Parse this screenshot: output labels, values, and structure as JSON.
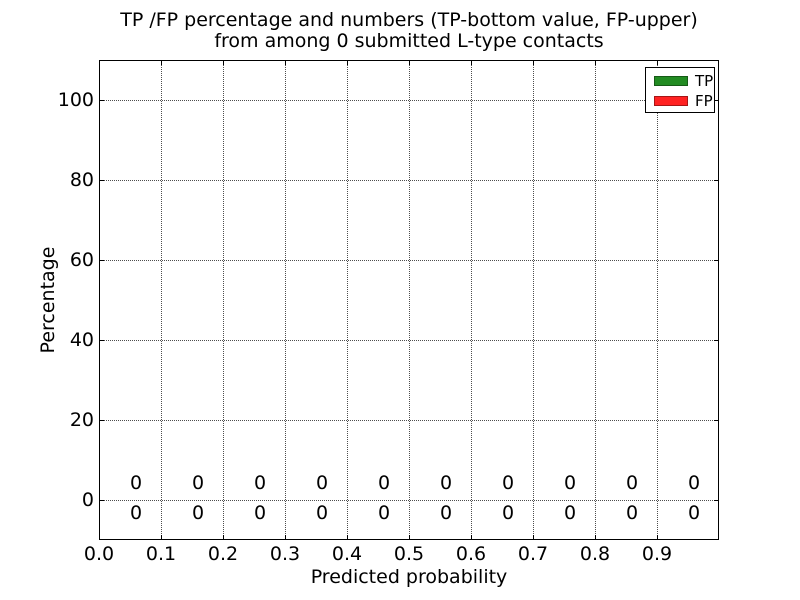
{
  "chart_data": {
    "type": "bar",
    "title_line1": "TP /FP percentage and numbers (TP-bottom value, FP-upper)",
    "title_line2": "from among 0 submitted L-type contacts",
    "xlabel": "Predicted probability",
    "ylabel": "Percentage",
    "xlim": [
      0.0,
      1.0
    ],
    "ylim": [
      -10,
      110
    ],
    "x_ticks": [
      "0.0",
      "0.1",
      "0.2",
      "0.3",
      "0.4",
      "0.5",
      "0.6",
      "0.7",
      "0.8",
      "0.9"
    ],
    "y_ticks": [
      "0",
      "20",
      "40",
      "60",
      "80",
      "100"
    ],
    "grid": "dotted",
    "legend_position": "upper right",
    "legend": [
      {
        "name": "TP",
        "color": "#228B22"
      },
      {
        "name": "FP",
        "color": "#FF2222"
      }
    ],
    "categories_bin_centers": [
      0.05,
      0.15,
      0.25,
      0.35,
      0.45,
      0.55,
      0.65,
      0.75,
      0.85,
      0.95
    ],
    "series": [
      {
        "name": "TP",
        "values": [
          0,
          0,
          0,
          0,
          0,
          0,
          0,
          0,
          0,
          0
        ],
        "label_row": "bottom"
      },
      {
        "name": "FP",
        "values": [
          0,
          0,
          0,
          0,
          0,
          0,
          0,
          0,
          0,
          0
        ],
        "label_row": "upper"
      }
    ],
    "bar_count_labels": {
      "fp_upper_row": [
        "0",
        "0",
        "0",
        "0",
        "0",
        "0",
        "0",
        "0",
        "0",
        "0"
      ],
      "tp_lower_row": [
        "0",
        "0",
        "0",
        "0",
        "0",
        "0",
        "0",
        "0",
        "0",
        "0"
      ]
    }
  }
}
